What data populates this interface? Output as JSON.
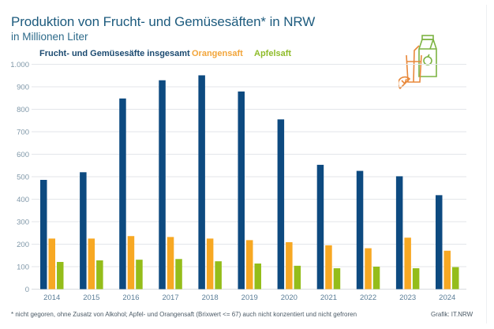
{
  "chart_data": {
    "type": "bar",
    "title": "Produktion von Frucht- und Gemüsesäften* in NRW",
    "subtitle": "in Millionen Liter",
    "xlabel": "",
    "ylabel": "",
    "ylim": [
      0,
      1000
    ],
    "yticks": [
      0,
      100,
      200,
      300,
      400,
      500,
      600,
      700,
      800,
      900,
      1000
    ],
    "ytick_labels": [
      "0",
      "100",
      "200",
      "300",
      "400",
      "500",
      "600",
      "700",
      "800",
      "900",
      "1.000"
    ],
    "grid": true,
    "legend_position": "top-left",
    "categories": [
      "2014",
      "2015",
      "2016",
      "2017",
      "2018",
      "2019",
      "2020",
      "2021",
      "2022",
      "2023",
      "2024"
    ],
    "series": [
      {
        "name": "Frucht- und Gemüsesäfte insgesamt",
        "color": "#0d4a80",
        "values": [
          486,
          520,
          848,
          929,
          951,
          879,
          755,
          553,
          526,
          502,
          418
        ]
      },
      {
        "name": "Orangensaft",
        "color": "#f7a823",
        "values": [
          225,
          225,
          236,
          232,
          225,
          218,
          209,
          195,
          182,
          229,
          171
        ]
      },
      {
        "name": "Apfelsaft",
        "color": "#94bd1a",
        "values": [
          121,
          128,
          131,
          134,
          124,
          114,
          104,
          93,
          100,
          93,
          98
        ]
      }
    ],
    "footnote": "*  nicht gegoren, ohne Zusatz von Alkohol; Apfel- und Orangensaft (Brixwert <= 67) auch nicht konzentiert und nicht gefroren",
    "source": "Grafik: IT.NRW"
  },
  "colors": {
    "title": "#1d5b7e",
    "grid": "#e3e6ea",
    "icon_orange": "#e8883a",
    "icon_green": "#7cb342"
  },
  "icon": "orange-juice-and-apple-juice-carton-icon"
}
